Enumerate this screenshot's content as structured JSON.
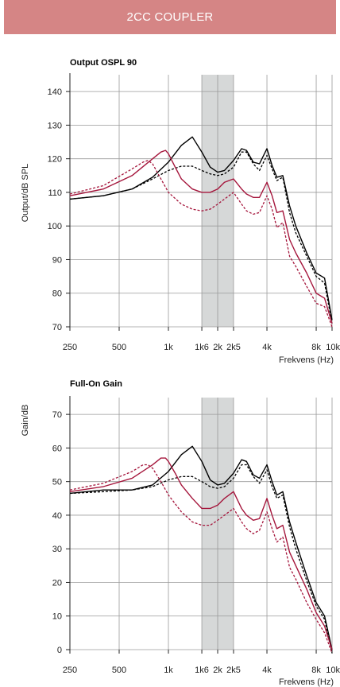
{
  "header": {
    "title": "2CC COUPLER"
  },
  "colors": {
    "banner": "#d58585",
    "black": "#000000",
    "red": "#a5163c",
    "band": "#d6d8d8"
  },
  "chart_data": [
    {
      "type": "line",
      "title": "Output OSPL 90",
      "xlabel": "Frekvens (Hz)",
      "ylabel": "Output/dB SPL",
      "xscale": "log",
      "xlim": [
        250,
        10000
      ],
      "ylim": [
        70,
        145
      ],
      "grid": true,
      "highlight_band": [
        1600,
        2500
      ],
      "x_ticks": [
        {
          "value": 250,
          "label": "250"
        },
        {
          "value": 500,
          "label": "500"
        },
        {
          "value": 1000,
          "label": "1k"
        },
        {
          "value": 1600,
          "label": "1k6"
        },
        {
          "value": 2000,
          "label": "2k"
        },
        {
          "value": 2500,
          "label": "2k5"
        },
        {
          "value": 4000,
          "label": "4k"
        },
        {
          "value": 8000,
          "label": "8k"
        },
        {
          "value": 10000,
          "label": "10k"
        }
      ],
      "y_ticks": [
        70,
        80,
        90,
        100,
        110,
        120,
        130,
        140
      ],
      "series": [
        {
          "color": "#000000",
          "dash": false,
          "x": [
            250,
            400,
            600,
            800,
            1000,
            1200,
            1400,
            1600,
            1800,
            2000,
            2200,
            2500,
            2800,
            3000,
            3300,
            3600,
            4000,
            4300,
            4600,
            5000,
            5500,
            6000,
            7000,
            8000,
            9000,
            10000
          ],
          "y": [
            108,
            109,
            111,
            114.5,
            119,
            124,
            126.5,
            122,
            117.5,
            116,
            116.5,
            119.5,
            123,
            122.5,
            119,
            118.5,
            123,
            118,
            114.5,
            115,
            106,
            100,
            92,
            86,
            84.5,
            72
          ]
        },
        {
          "color": "#000000",
          "dash": true,
          "x": [
            250,
            400,
            600,
            800,
            1000,
            1200,
            1400,
            1600,
            1800,
            2000,
            2200,
            2500,
            2800,
            3000,
            3300,
            3600,
            4000,
            4300,
            4600,
            5000,
            5500,
            6000,
            7000,
            8000,
            9000,
            10000
          ],
          "y": [
            108,
            109,
            111,
            114,
            116.5,
            117.8,
            117.8,
            116.5,
            115.5,
            115,
            115.5,
            117.5,
            122,
            122,
            118.5,
            116.5,
            121,
            117,
            113.5,
            114.5,
            104,
            98,
            91,
            85,
            83,
            71
          ]
        },
        {
          "color": "#a5163c",
          "dash": false,
          "x": [
            250,
            400,
            600,
            800,
            900,
            960,
            1000,
            1100,
            1200,
            1400,
            1600,
            1800,
            2000,
            2200,
            2500,
            2800,
            3000,
            3300,
            3600,
            4000,
            4300,
            4600,
            5000,
            5500,
            6000,
            7000,
            8000,
            9000,
            10000
          ],
          "y": [
            109,
            111,
            115,
            120,
            122,
            122.5,
            121.5,
            117.5,
            114,
            111,
            110,
            110,
            111,
            113,
            114,
            111,
            109.5,
            108.5,
            108.5,
            113,
            109,
            104,
            104.5,
            96,
            92,
            86,
            80,
            78.5,
            71
          ]
        },
        {
          "color": "#a5163c",
          "dash": true,
          "x": [
            250,
            400,
            600,
            700,
            750,
            800,
            900,
            1000,
            1200,
            1400,
            1600,
            1800,
            2000,
            2200,
            2500,
            2800,
            3000,
            3300,
            3600,
            4000,
            4300,
            4600,
            5000,
            5500,
            6000,
            7000,
            8000,
            9000,
            10000
          ],
          "y": [
            109.5,
            112,
            117,
            119,
            119.5,
            118.5,
            114,
            110,
            106.5,
            105,
            104.5,
            105,
            106.5,
            108,
            110,
            106.5,
            104.5,
            103.5,
            104,
            109,
            105,
            99.5,
            101,
            91,
            88,
            82,
            77,
            76,
            70
          ]
        }
      ]
    },
    {
      "type": "line",
      "title": "Full-On Gain",
      "xlabel": "Frekvens (Hz)",
      "ylabel": "Gain/dB",
      "xscale": "log",
      "xlim": [
        250,
        10000
      ],
      "ylim": [
        0,
        75
      ],
      "grid": true,
      "highlight_band": [
        1600,
        2500
      ],
      "x_ticks": [
        {
          "value": 250,
          "label": "250"
        },
        {
          "value": 500,
          "label": "500"
        },
        {
          "value": 1000,
          "label": "1k"
        },
        {
          "value": 1600,
          "label": "1k6"
        },
        {
          "value": 2000,
          "label": "2k"
        },
        {
          "value": 2500,
          "label": "2k5"
        },
        {
          "value": 4000,
          "label": "4k"
        },
        {
          "value": 8000,
          "label": "8k"
        },
        {
          "value": 10000,
          "label": "10k"
        }
      ],
      "y_ticks": [
        0,
        10,
        20,
        30,
        40,
        50,
        60,
        70
      ],
      "series": [
        {
          "color": "#000000",
          "dash": false,
          "x": [
            250,
            400,
            600,
            800,
            1000,
            1200,
            1400,
            1600,
            1800,
            2000,
            2200,
            2500,
            2800,
            3000,
            3300,
            3600,
            4000,
            4300,
            4600,
            5000,
            5500,
            6000,
            7000,
            8000,
            9000,
            10000
          ],
          "y": [
            46.5,
            47.5,
            47.5,
            49,
            53,
            58,
            60.5,
            56,
            50.5,
            49,
            49.5,
            52.5,
            56.5,
            56,
            52,
            51,
            55,
            50,
            46,
            47,
            38,
            32,
            22,
            14,
            10,
            0
          ]
        },
        {
          "color": "#000000",
          "dash": true,
          "x": [
            250,
            400,
            600,
            800,
            1000,
            1200,
            1400,
            1600,
            1800,
            2000,
            2200,
            2500,
            2800,
            3000,
            3300,
            3600,
            4000,
            4300,
            4600,
            5000,
            5500,
            6000,
            7000,
            8000,
            9000,
            10000
          ],
          "y": [
            46.5,
            47,
            47.5,
            48.5,
            50.5,
            51.5,
            51.5,
            50,
            48.5,
            48,
            48.5,
            51,
            55,
            55,
            51.5,
            49.5,
            53.5,
            48.5,
            45,
            46,
            36.5,
            30,
            20.5,
            13,
            9,
            -1
          ]
        },
        {
          "color": "#a5163c",
          "dash": false,
          "x": [
            250,
            400,
            600,
            800,
            900,
            960,
            1000,
            1100,
            1200,
            1400,
            1600,
            1800,
            2000,
            2200,
            2500,
            2800,
            3000,
            3300,
            3600,
            4000,
            4300,
            4600,
            5000,
            5500,
            6000,
            7000,
            8000,
            9000,
            10000
          ],
          "y": [
            47,
            48.5,
            51,
            55,
            57,
            57,
            56,
            52.5,
            49,
            45,
            42,
            42,
            43,
            45,
            47,
            42,
            40,
            38.5,
            39,
            45,
            40,
            36,
            37,
            29,
            25,
            18,
            11,
            7,
            0
          ]
        },
        {
          "color": "#a5163c",
          "dash": true,
          "x": [
            250,
            400,
            600,
            700,
            750,
            800,
            900,
            1000,
            1200,
            1400,
            1600,
            1800,
            2000,
            2200,
            2500,
            2800,
            3000,
            3300,
            3600,
            4000,
            4300,
            4600,
            5000,
            5500,
            6000,
            7000,
            8000,
            9000,
            10000
          ],
          "y": [
            47.5,
            49.5,
            53,
            55,
            55,
            54,
            50,
            46,
            41,
            38,
            37,
            37,
            38.5,
            40,
            42,
            38,
            36,
            34.5,
            35.5,
            41,
            36,
            32,
            33.5,
            24.5,
            21,
            14,
            9,
            5,
            -1
          ]
        }
      ]
    }
  ]
}
